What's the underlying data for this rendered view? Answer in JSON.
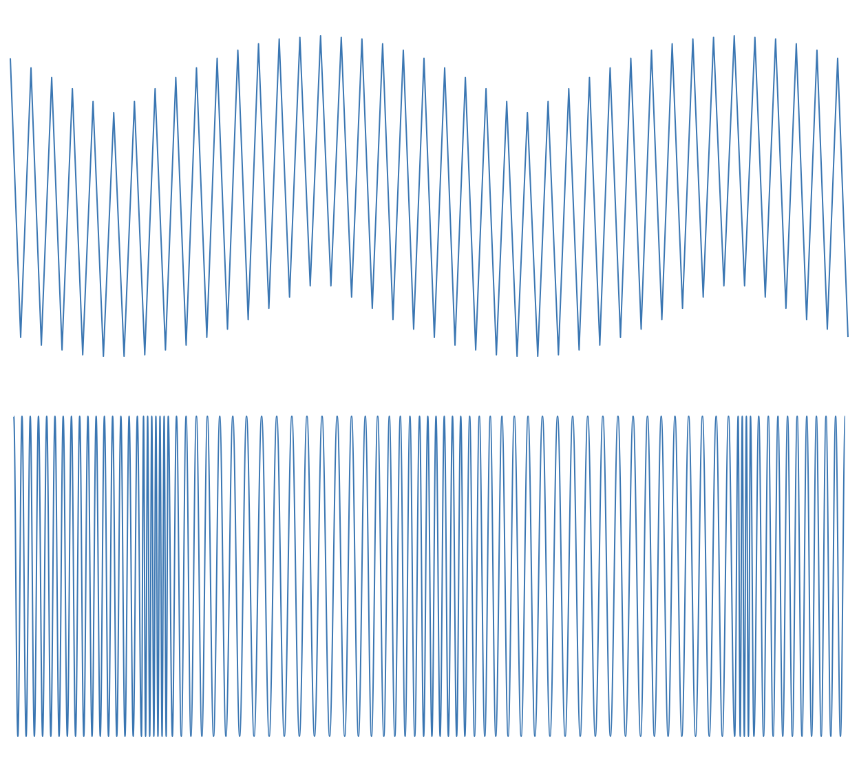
{
  "chart_data": [
    {
      "type": "line",
      "color": "#3a76b2",
      "ylim": [
        -1,
        1
      ],
      "values": [
        0.86,
        -0.88,
        0.8,
        -0.93,
        0.74,
        -0.96,
        0.67,
        -0.99,
        0.59,
        -1.0,
        0.52,
        -1.0,
        0.59,
        -0.99,
        0.67,
        -0.96,
        0.74,
        -0.93,
        0.8,
        -0.88,
        0.86,
        -0.83,
        0.91,
        -0.77,
        0.95,
        -0.7,
        0.98,
        -0.63,
        0.99,
        -0.56,
        1.0,
        -0.56,
        0.99,
        -0.63,
        0.98,
        -0.7,
        0.95,
        -0.77,
        0.91,
        -0.83,
        0.86,
        -0.88,
        0.8,
        -0.93,
        0.74,
        -0.96,
        0.67,
        -0.99,
        0.59,
        -1.0,
        0.52,
        -1.0,
        0.59,
        -0.99,
        0.67,
        -0.96,
        0.74,
        -0.93,
        0.8,
        -0.88,
        0.86,
        -0.83,
        0.91,
        -0.77,
        0.95,
        -0.7,
        0.98,
        -0.63,
        0.99,
        -0.56,
        1.0,
        -0.56,
        0.99,
        -0.63,
        0.98,
        -0.7,
        0.95,
        -0.77,
        0.91,
        -0.83,
        0.86,
        -0.88
      ]
    },
    {
      "type": "curve",
      "color": "#3a76b2",
      "ylim": [
        -1,
        1
      ],
      "xlim": [
        0,
        1220
      ],
      "x": [
        5,
        11,
        17,
        23,
        29,
        35,
        41,
        47,
        53,
        59,
        65,
        71,
        77,
        83,
        89,
        95,
        101,
        107,
        113,
        119,
        125,
        131,
        137,
        143,
        149,
        155,
        161,
        167,
        173,
        179,
        185,
        191,
        194,
        197,
        200,
        203,
        206,
        209,
        212,
        215,
        218,
        221,
        224,
        227,
        230,
        236,
        242,
        249,
        256,
        263,
        271,
        279,
        287,
        296,
        305,
        314,
        324,
        334,
        344,
        355,
        366,
        377,
        388,
        399,
        410,
        421,
        432,
        443,
        454,
        465,
        476,
        487,
        497,
        507,
        517,
        526,
        535,
        544,
        552,
        560,
        568,
        575,
        582,
        589,
        596,
        602,
        608,
        614,
        620,
        626,
        632,
        638,
        644,
        650,
        656,
        662,
        669,
        676,
        683,
        691,
        699,
        707,
        716,
        725,
        734,
        744,
        754,
        764,
        775,
        786,
        797,
        808,
        819,
        830,
        841,
        852,
        863,
        874,
        885,
        896,
        907,
        918,
        928,
        938,
        948,
        958,
        968,
        978,
        988,
        998,
        1008,
        1018,
        1028,
        1037,
        1046,
        1055,
        1060,
        1063,
        1066,
        1069,
        1072,
        1075,
        1078,
        1083,
        1090,
        1097,
        1104,
        1111,
        1118,
        1125,
        1132,
        1139,
        1146,
        1153,
        1160,
        1167,
        1174,
        1181,
        1188,
        1195,
        1202,
        1209,
        1216
      ],
      "values": [
        1,
        -1,
        1,
        -1,
        1,
        -1,
        1,
        -1,
        1,
        -1,
        1,
        -1,
        1,
        -1,
        1,
        -1,
        1,
        -1,
        1,
        -1,
        1,
        -1,
        1,
        -1,
        1,
        -1,
        1,
        -1,
        1,
        -1,
        1,
        -1,
        1,
        -1,
        1,
        -1,
        1,
        -1,
        1,
        -1,
        1,
        -1,
        1,
        -1,
        1,
        -1,
        1,
        -1,
        1,
        -1,
        1,
        -1,
        1,
        -1,
        1,
        -1,
        1,
        -1,
        1,
        -1,
        1,
        -1,
        1,
        -1,
        1,
        -1,
        1,
        -1,
        1,
        -1,
        1,
        -1,
        1,
        -1,
        1,
        -1,
        1,
        -1,
        1,
        -1,
        1,
        -1,
        1,
        -1,
        1,
        -1,
        1,
        -1,
        1,
        -1,
        1,
        -1,
        1,
        -1,
        1,
        -1,
        1,
        -1,
        1,
        -1,
        1,
        -1,
        1,
        -1,
        1,
        -1,
        1,
        -1,
        1,
        -1,
        1,
        -1,
        1,
        -1,
        1,
        -1,
        1,
        -1,
        1,
        -1,
        1,
        -1,
        1,
        -1,
        1,
        -1,
        1,
        -1,
        1,
        -1,
        1,
        -1,
        1,
        -1,
        1,
        -1,
        1,
        -1,
        1,
        -1,
        1,
        -1,
        1,
        -1,
        1,
        -1,
        1,
        -1,
        1,
        -1,
        1,
        -1,
        1,
        -1,
        1,
        -1,
        1,
        -1,
        1,
        -1,
        1,
        -1,
        1
      ]
    }
  ]
}
